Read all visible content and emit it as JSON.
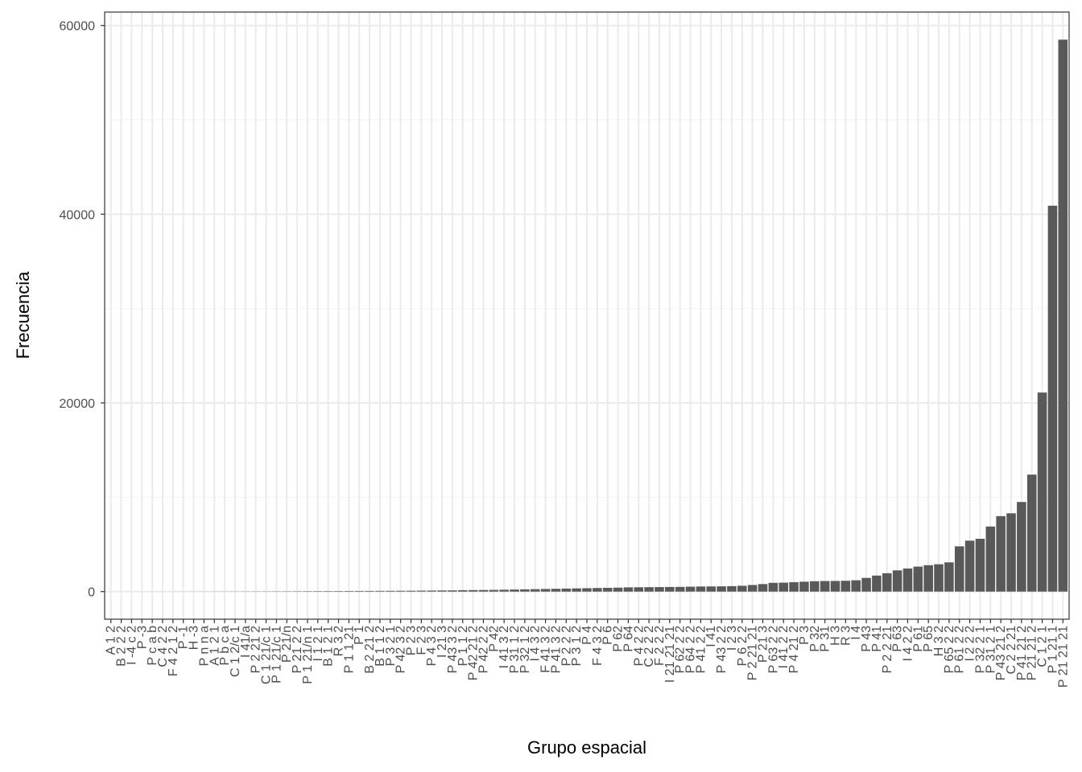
{
  "chart_data": {
    "type": "bar",
    "xlabel": "Grupo espacial",
    "ylabel": "Frecuencia",
    "categories": [
      "A 1 2",
      "B 2 2 2",
      "I -4 c 2",
      "P -3",
      "P c a b",
      "C 4 2 2",
      "F 4 2 1 2",
      "P -1",
      "H -3",
      "P n n a",
      "A 1 2 1",
      "P b c a",
      "C 1 2/c 1",
      "I 41/a",
      "P 2 21 2",
      "C 1 21/c 1",
      "P 1 21/c 1",
      "P 21/n",
      "P 21 2 2",
      "P 1 21/n 1",
      "I 1 2 1",
      "B 1 2 1",
      "R 3 2",
      "P 1 1 21",
      "P 1",
      "B 2 21 2",
      "B 1 1 2",
      "P 3 2 1",
      "P 42 3 2",
      "P 2 3",
      "F 2 3",
      "P 4 3 2",
      "I 21 3",
      "P 43 3 2",
      "P 1 1 2",
      "P 42 21 2",
      "P 42 2 2",
      "P 42",
      "I 41 3 2",
      "P 31 1 2",
      "P 32 1 2",
      "I 4 3 2",
      "F 41 3 2",
      "P 41 3 2",
      "P 2 2 2",
      "P 3 1 2",
      "P 4",
      "F 4 3 2",
      "P 6",
      "P 62",
      "P 64",
      "P 4 2 2",
      "C 2 2 2",
      "F 2 2 2",
      "I 21 21 21",
      "P 62 2 2",
      "P 64 2 2",
      "P 41 2 2",
      "I 41",
      "P 43 2 2",
      "I 2 3",
      "P 6 2 2",
      "P 2 21 21",
      "P 21 3",
      "P 63 2 2",
      "I 41 2 2",
      "P 4 21 2",
      "P 3",
      "P 32",
      "P 31",
      "H 3",
      "R 3",
      "I 4",
      "P 43",
      "P 41",
      "P 2 2 21",
      "P 63",
      "I 4 2 2",
      "P 61",
      "P 65",
      "H 3 2",
      "P 65 2 2",
      "P 61 2 2",
      "I 2 2 2",
      "P 32 2 1",
      "P 31 2 1",
      "P 43 21 2",
      "C 2 2 21",
      "P 41 21 2",
      "P 21 21 2",
      "C 1 2 1",
      "P 1 21 1",
      "P 21 21 21"
    ],
    "values": [
      1,
      1,
      2,
      2,
      3,
      3,
      4,
      5,
      6,
      8,
      10,
      12,
      14,
      16,
      18,
      20,
      25,
      30,
      35,
      40,
      45,
      50,
      55,
      60,
      65,
      70,
      75,
      80,
      85,
      90,
      100,
      110,
      120,
      130,
      150,
      160,
      170,
      180,
      200,
      220,
      240,
      260,
      280,
      300,
      320,
      340,
      360,
      380,
      400,
      420,
      450,
      460,
      470,
      480,
      490,
      500,
      520,
      540,
      550,
      560,
      580,
      620,
      700,
      800,
      930,
      950,
      1000,
      1050,
      1100,
      1120,
      1130,
      1150,
      1200,
      1450,
      1700,
      1950,
      2250,
      2450,
      2650,
      2800,
      2900,
      3100,
      4800,
      5400,
      5600,
      6900,
      8000,
      8300,
      9500,
      12400,
      21100,
      40900,
      58500
    ],
    "color": "#595959",
    "ylim": [
      -2925,
      61425
    ],
    "yticks": [
      0,
      20000,
      40000,
      60000
    ],
    "yminor": [
      10000,
      30000,
      50000
    ],
    "grid": true
  }
}
